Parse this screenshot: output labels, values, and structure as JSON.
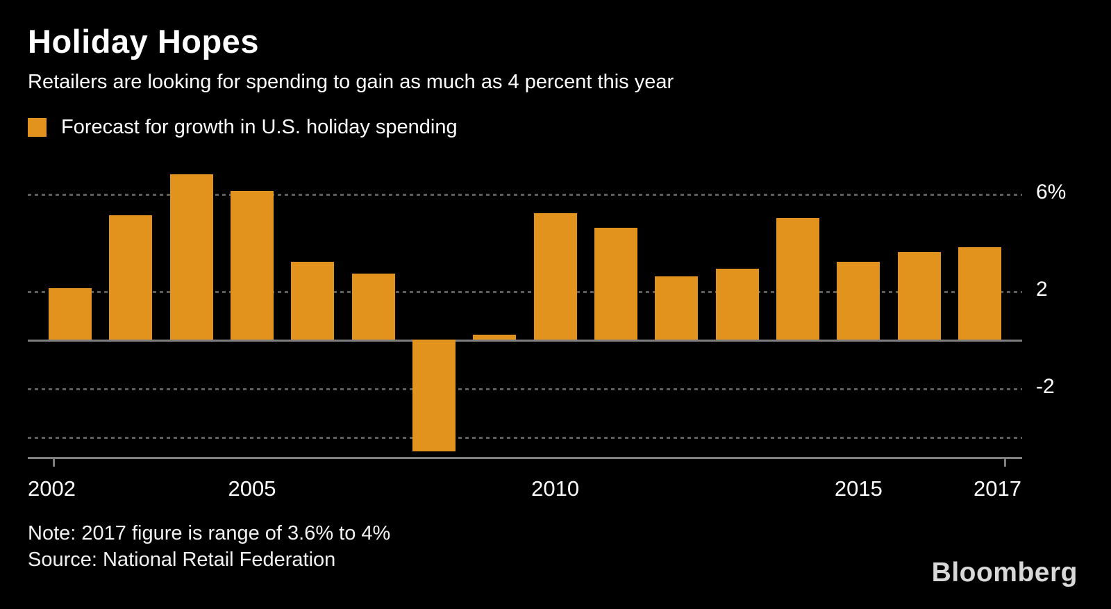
{
  "header": {
    "title": "Holiday Hopes",
    "subtitle": "Retailers are looking for spending to gain as much as 4 percent this year"
  },
  "legend": {
    "label": "Forecast for growth in U.S. holiday spending",
    "swatch_color": "#E2931D"
  },
  "chart_data": {
    "type": "bar",
    "title": "Holiday Hopes",
    "subtitle": "Retailers are looking for spending to gain as much as 4 percent this year",
    "series_name": "Forecast for growth in U.S. holiday spending",
    "categories": [
      2002,
      2003,
      2004,
      2005,
      2006,
      2007,
      2008,
      2009,
      2010,
      2011,
      2012,
      2013,
      2014,
      2015,
      2016,
      2017
    ],
    "values": [
      2.1,
      5.1,
      6.8,
      6.1,
      3.2,
      2.7,
      -4.6,
      0.2,
      5.2,
      4.6,
      2.6,
      2.9,
      5.0,
      3.2,
      3.6,
      3.8
    ],
    "unit": "%",
    "xlabel": "",
    "ylabel": "",
    "ylim": [
      -4.9,
      7.4
    ],
    "y_ticks": [
      {
        "value": 6,
        "label": "6%"
      },
      {
        "value": 2,
        "label": "2"
      },
      {
        "value": -2,
        "label": "-2"
      },
      {
        "value": -4,
        "label": ""
      }
    ],
    "x_ticks": [
      2002,
      2005,
      2010,
      2015,
      2017
    ],
    "grid": "horizontal-dotted",
    "legend_position": "top-left",
    "bar_color": "#E2931D",
    "background_color": "#000000",
    "axis_color": "#7e7e7e"
  },
  "footer": {
    "note": "Note: 2017 figure is range of 3.6% to 4%",
    "source": "Source: National Retail Federation",
    "brand": "Bloomberg"
  }
}
